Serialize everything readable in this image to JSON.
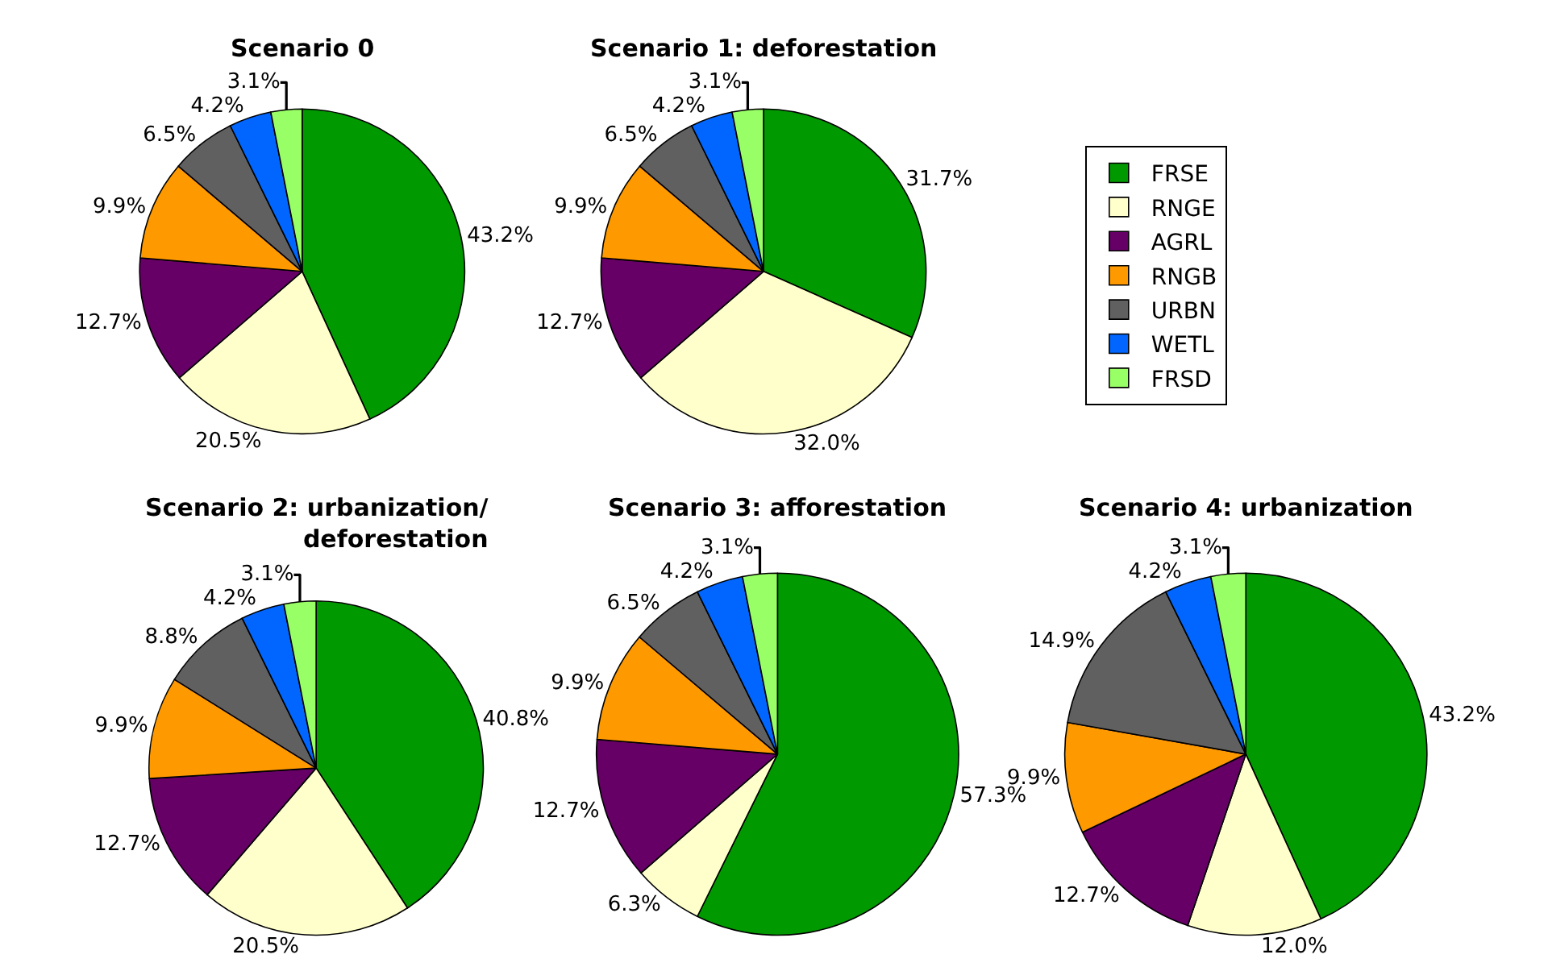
{
  "chart_data": [
    {
      "type": "pie",
      "title": "Scenario 0",
      "categories": [
        "FRSE",
        "RNGE",
        "AGRL",
        "RNGB",
        "URBN",
        "WETL",
        "FRSD"
      ],
      "values": [
        43.2,
        20.5,
        12.7,
        9.9,
        6.5,
        4.2,
        3.1
      ],
      "value_labels": [
        "43.2%",
        "20.5%",
        "12.7%",
        "9.9%",
        "6.5%",
        "4.2%",
        "3.1%"
      ],
      "colors": [
        "#009900",
        "#ffffcc",
        "#660066",
        "#ff9900",
        "#606060",
        "#0066ff",
        "#99ff66"
      ],
      "legend": "right"
    },
    {
      "type": "pie",
      "title": "Scenario 1: deforestation",
      "categories": [
        null,
        null,
        null,
        null,
        null,
        null,
        null
      ],
      "values": [
        31.7,
        32.0,
        12.7,
        9.9,
        6.5,
        4.2,
        3.1
      ],
      "value_labels": [
        "31.7%",
        "32.0%",
        "12.7%",
        "9.9%",
        "6.5%",
        "4.2%",
        "3.1%"
      ],
      "colors": [
        "#009900",
        "#ffffcc",
        "#660066",
        "#ff9900",
        "#606060",
        "#0066ff",
        "#99ff66"
      ]
    },
    {
      "type": "pie",
      "title": "Scenario 2: urbanization/\ndeforestation",
      "categories": [
        null,
        null,
        null,
        null,
        null,
        null,
        null
      ],
      "values": [
        40.8,
        20.5,
        12.7,
        9.9,
        8.8,
        4.2,
        3.1
      ],
      "value_labels": [
        "40.8%",
        "20.5%",
        "12.7%",
        "9.9%",
        "8.8%",
        "4.2%",
        "3.1%"
      ],
      "colors": [
        "#009900",
        "#ffffcc",
        "#660066",
        "#ff9900",
        "#606060",
        "#0066ff",
        "#99ff66"
      ]
    },
    {
      "type": "pie",
      "title": "Scenario 3: afforestation",
      "categories": [
        null,
        null,
        null,
        null,
        null,
        null,
        null
      ],
      "values": [
        57.3,
        6.3,
        12.7,
        9.9,
        6.5,
        4.2,
        3.1
      ],
      "value_labels": [
        "57.3%",
        "6.3%",
        "12.7%",
        "9.9%",
        "6.5%",
        "4.2%",
        "3.1%"
      ],
      "colors": [
        "#009900",
        "#ffffcc",
        "#660066",
        "#ff9900",
        "#606060",
        "#0066ff",
        "#99ff66"
      ]
    },
    {
      "type": "pie",
      "title": "Scenario 4: urbanization",
      "categories": [
        null,
        null,
        null,
        null,
        null,
        null,
        null
      ],
      "values": [
        43.2,
        12.0,
        12.7,
        9.9,
        14.9,
        4.2,
        3.1
      ],
      "value_labels": [
        "43.2%",
        "12.0%",
        "12.7%",
        "9.9%",
        "14.9%",
        "4.2%",
        "3.1%"
      ],
      "colors": [
        "#009900",
        "#ffffcc",
        "#660066",
        "#ff9900",
        "#606060",
        "#0066ff",
        "#99ff66"
      ]
    }
  ]
}
